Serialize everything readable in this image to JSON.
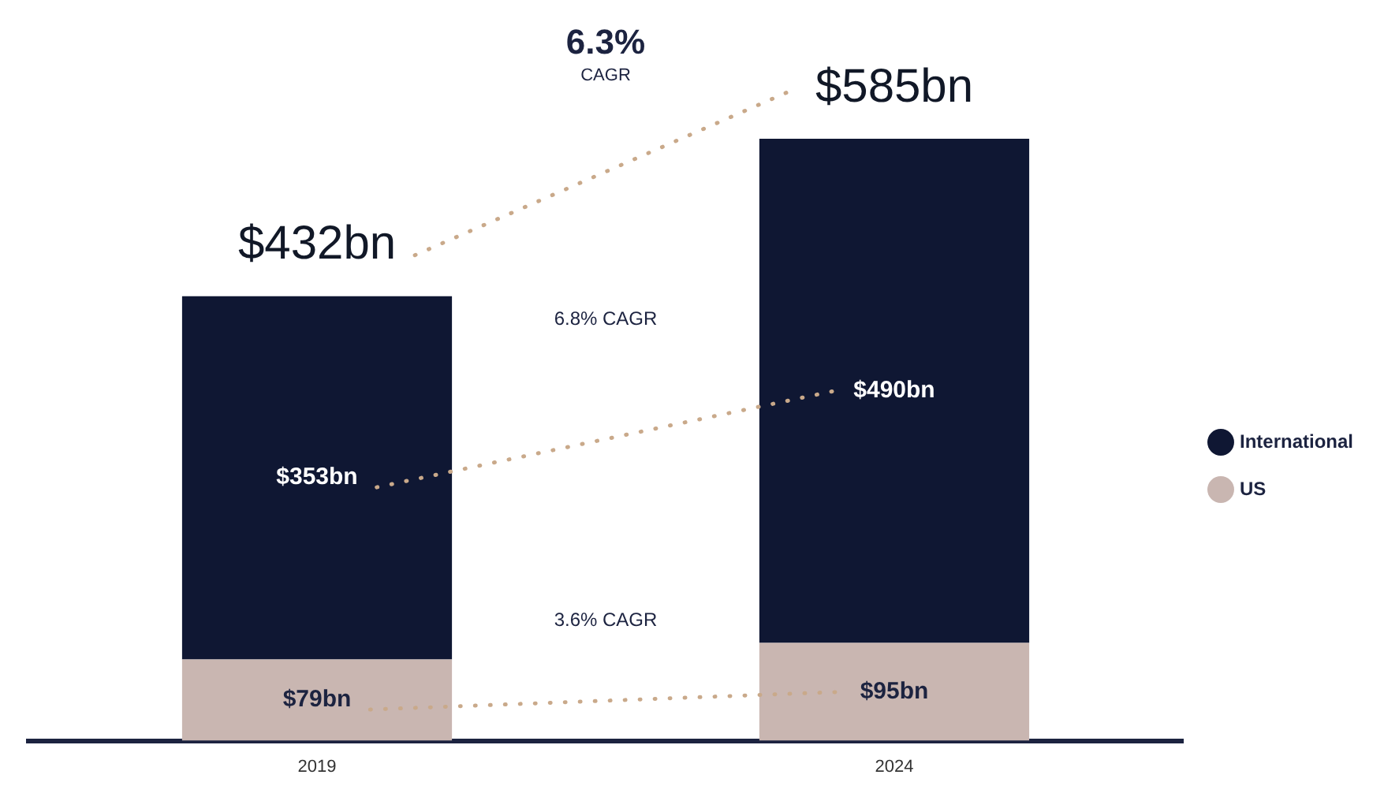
{
  "chart_data": {
    "type": "bar",
    "stacked": true,
    "categories": [
      "2019",
      "2024"
    ],
    "series": [
      {
        "name": "US",
        "color": "#c9b6b1",
        "values": [
          79,
          95
        ],
        "value_labels": [
          "$79bn",
          "$95bn"
        ]
      },
      {
        "name": "International",
        "color": "#0f1733",
        "values": [
          353,
          490
        ],
        "value_labels": [
          "$353bn",
          "$490bn"
        ]
      }
    ],
    "totals": [
      "$432bn",
      "$585bn"
    ],
    "annotations": [
      "6.3% CAGR",
      "6.8% CAGR",
      "3.6% CAGR"
    ],
    "legend": "right",
    "grid": false,
    "tick_labels": "x"
  }
}
